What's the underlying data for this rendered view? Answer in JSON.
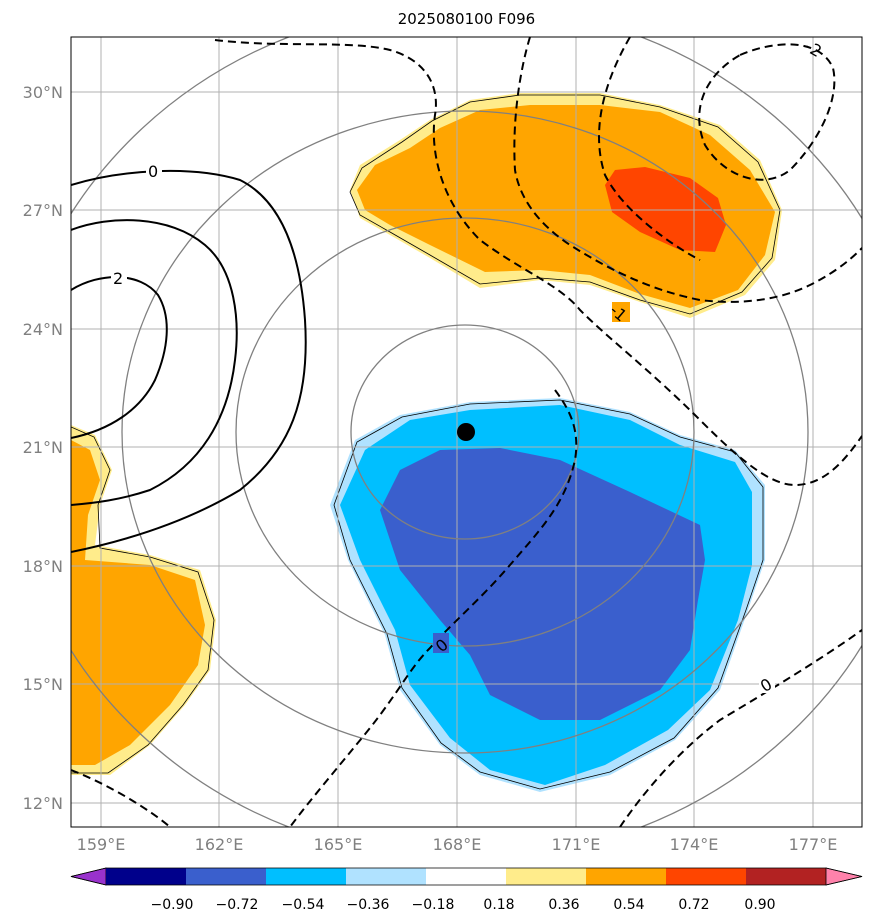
{
  "title": "2025080100 F096",
  "lon_ticks": [
    "159°E",
    "162°E",
    "165°E",
    "168°E",
    "171°E",
    "174°E",
    "177°E"
  ],
  "lat_ticks": [
    "30°N",
    "27°N",
    "24°N",
    "21°N",
    "18°N",
    "15°N",
    "12°N"
  ],
  "colorbar": {
    "ticks": [
      "−0.90",
      "−0.72",
      "−0.54",
      "−0.36",
      "−0.18",
      "0.18",
      "0.36",
      "0.54",
      "0.72",
      "0.90"
    ],
    "colors": {
      "under": "#9932CC",
      "levels": [
        "#9932CC",
        "#00008B",
        "#3A5FCD",
        "#00BFFF",
        "#B0E2FF",
        "#FFFFFF",
        "#FFEC8B",
        "#FFA500",
        "#FF4500",
        "#B22222",
        "#FF82AB"
      ],
      "over": "#FF82AB"
    }
  },
  "contour_labels": {
    "solid_zero": "0",
    "solid_two": "2",
    "dashed_minus_one": "-1",
    "dashed_minus_two": "-2",
    "dashed_zero_center": "0",
    "dashed_zero_lower_right": "0"
  },
  "marker": {
    "label": "storm-center",
    "lon": 168.3,
    "lat": 21.4
  }
}
